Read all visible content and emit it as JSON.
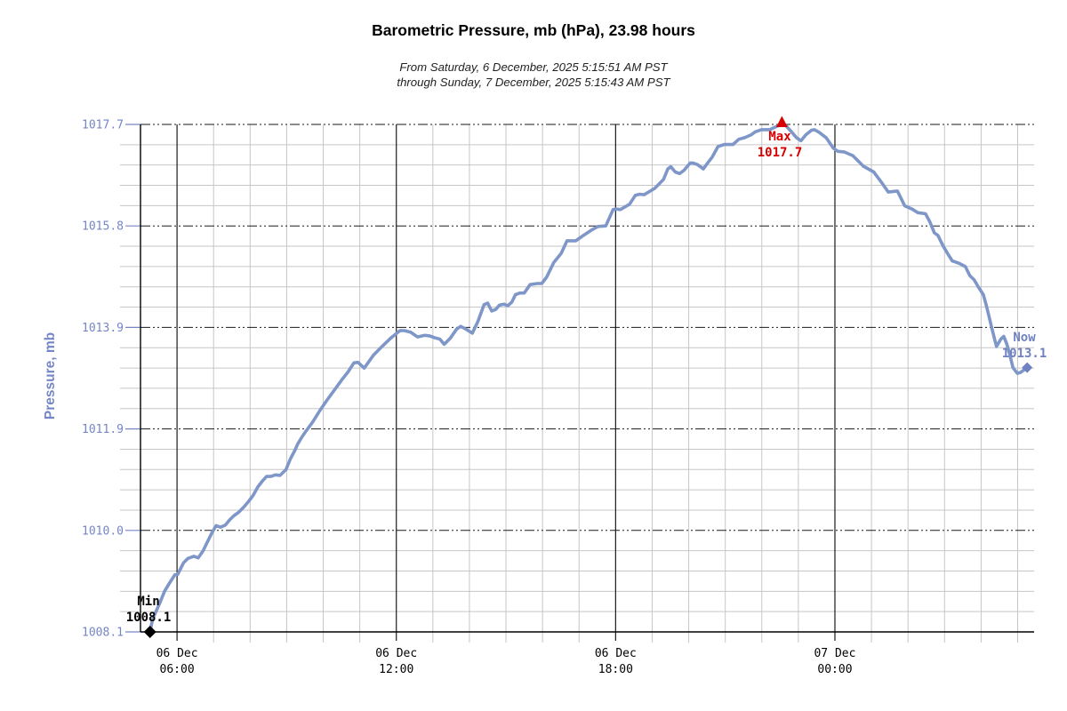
{
  "title": "Barometric Pressure, mb (hPa), 23.98 hours",
  "subtitle_line1": "From Saturday, 6 December, 2025 5:15:51 AM PST",
  "subtitle_line2": "through Sunday, 7 December, 2025 5:15:43 AM PST",
  "chart_data": {
    "type": "line",
    "title": "Barometric Pressure, mb (hPa), 23.98 hours",
    "ylabel": "Pressure, mb",
    "x_unit": "hours",
    "x_range": [
      5.0,
      29.45
    ],
    "y_range": [
      1008.1,
      1017.7
    ],
    "y_ticks": [
      {
        "value": 1017.7,
        "label": "1017.7"
      },
      {
        "value": 1015.78,
        "label": "1015.8"
      },
      {
        "value": 1013.86,
        "label": "1013.9"
      },
      {
        "value": 1011.94,
        "label": "1011.9"
      },
      {
        "value": 1010.02,
        "label": "1010.0"
      },
      {
        "value": 1008.1,
        "label": "1008.1"
      }
    ],
    "y_minor_divisions": 25,
    "x_major_ticks": [
      {
        "hour": 6,
        "label_line1": "06 Dec",
        "label_line2": "06:00"
      },
      {
        "hour": 12,
        "label_line1": "06 Dec",
        "label_line2": "12:00"
      },
      {
        "hour": 18,
        "label_line1": "06 Dec",
        "label_line2": "18:00"
      },
      {
        "hour": 24,
        "label_line1": "07 Dec",
        "label_line2": "00:00"
      }
    ],
    "x_minor_step_hours": 1,
    "grid": true,
    "legend": false,
    "markers": {
      "min": {
        "label": "Min",
        "value_label": "1008.1",
        "value": 1008.1,
        "hour": 5.26
      },
      "max": {
        "label": "Max",
        "value_label": "1017.7",
        "value": 1017.7,
        "hour": 22.55
      },
      "now": {
        "label": "Now",
        "value_label": "1013.1",
        "value": 1013.1,
        "hour": 29.26
      }
    },
    "colors": {
      "line": "#7E96C8",
      "axis_labels": "#7586C6",
      "now_marker": "#7081C2",
      "min_marker": "#000000",
      "max_marker": "#D60000",
      "minor_grid": "#C6C6C6",
      "major_grid": "#1A1A1A",
      "axis": "#000000",
      "tick_text": "#000000"
    },
    "series": [
      {
        "name": "pressure",
        "points": [
          [
            5.26,
            1008.1
          ],
          [
            5.33,
            1008.34
          ],
          [
            5.53,
            1008.65
          ],
          [
            5.66,
            1008.87
          ],
          [
            5.78,
            1009.01
          ],
          [
            5.94,
            1009.18
          ],
          [
            6.02,
            1009.19
          ],
          [
            6.18,
            1009.41
          ],
          [
            6.3,
            1009.49
          ],
          [
            6.46,
            1009.53
          ],
          [
            6.58,
            1009.5
          ],
          [
            6.71,
            1009.63
          ],
          [
            6.83,
            1009.8
          ],
          [
            6.95,
            1009.97
          ],
          [
            7.07,
            1010.11
          ],
          [
            7.19,
            1010.08
          ],
          [
            7.32,
            1010.12
          ],
          [
            7.44,
            1010.22
          ],
          [
            7.56,
            1010.3
          ],
          [
            7.68,
            1010.36
          ],
          [
            7.84,
            1010.47
          ],
          [
            7.97,
            1010.58
          ],
          [
            8.09,
            1010.69
          ],
          [
            8.21,
            1010.84
          ],
          [
            8.33,
            1010.95
          ],
          [
            8.45,
            1011.04
          ],
          [
            8.57,
            1011.04
          ],
          [
            8.69,
            1011.07
          ],
          [
            8.82,
            1011.06
          ],
          [
            8.98,
            1011.17
          ],
          [
            9.1,
            1011.37
          ],
          [
            9.22,
            1011.53
          ],
          [
            9.3,
            1011.65
          ],
          [
            9.42,
            1011.79
          ],
          [
            9.54,
            1011.91
          ],
          [
            9.71,
            1012.07
          ],
          [
            9.91,
            1012.29
          ],
          [
            10.11,
            1012.49
          ],
          [
            10.31,
            1012.68
          ],
          [
            10.52,
            1012.88
          ],
          [
            10.68,
            1013.02
          ],
          [
            10.84,
            1013.19
          ],
          [
            10.95,
            1013.2
          ],
          [
            11.12,
            1013.09
          ],
          [
            11.37,
            1013.33
          ],
          [
            11.61,
            1013.5
          ],
          [
            11.85,
            1013.66
          ],
          [
            12.1,
            1013.8
          ],
          [
            12.22,
            1013.8
          ],
          [
            12.39,
            1013.77
          ],
          [
            12.58,
            1013.68
          ],
          [
            12.78,
            1013.71
          ],
          [
            12.91,
            1013.7
          ],
          [
            13.07,
            1013.66
          ],
          [
            13.19,
            1013.64
          ],
          [
            13.31,
            1013.54
          ],
          [
            13.48,
            1013.66
          ],
          [
            13.65,
            1013.83
          ],
          [
            13.76,
            1013.88
          ],
          [
            13.9,
            1013.83
          ],
          [
            14.08,
            1013.75
          ],
          [
            14.23,
            1013.97
          ],
          [
            14.4,
            1014.29
          ],
          [
            14.5,
            1014.32
          ],
          [
            14.61,
            1014.17
          ],
          [
            14.72,
            1014.2
          ],
          [
            14.82,
            1014.28
          ],
          [
            14.94,
            1014.3
          ],
          [
            15.05,
            1014.27
          ],
          [
            15.16,
            1014.34
          ],
          [
            15.26,
            1014.48
          ],
          [
            15.38,
            1014.51
          ],
          [
            15.5,
            1014.51
          ],
          [
            15.66,
            1014.67
          ],
          [
            15.86,
            1014.69
          ],
          [
            15.98,
            1014.69
          ],
          [
            16.11,
            1014.81
          ],
          [
            16.31,
            1015.09
          ],
          [
            16.51,
            1015.26
          ],
          [
            16.67,
            1015.5
          ],
          [
            16.91,
            1015.5
          ],
          [
            17.12,
            1015.6
          ],
          [
            17.36,
            1015.71
          ],
          [
            17.52,
            1015.77
          ],
          [
            17.73,
            1015.78
          ],
          [
            17.93,
            1016.09
          ],
          [
            18.01,
            1016.1
          ],
          [
            18.13,
            1016.09
          ],
          [
            18.38,
            1016.19
          ],
          [
            18.54,
            1016.36
          ],
          [
            18.66,
            1016.38
          ],
          [
            18.78,
            1016.37
          ],
          [
            19.07,
            1016.49
          ],
          [
            19.31,
            1016.66
          ],
          [
            19.43,
            1016.86
          ],
          [
            19.51,
            1016.9
          ],
          [
            19.63,
            1016.8
          ],
          [
            19.75,
            1016.77
          ],
          [
            19.87,
            1016.83
          ],
          [
            20.04,
            1016.97
          ],
          [
            20.12,
            1016.97
          ],
          [
            20.24,
            1016.94
          ],
          [
            20.4,
            1016.86
          ],
          [
            20.53,
            1016.98
          ],
          [
            20.64,
            1017.08
          ],
          [
            20.8,
            1017.28
          ],
          [
            20.97,
            1017.32
          ],
          [
            21.21,
            1017.32
          ],
          [
            21.37,
            1017.42
          ],
          [
            21.53,
            1017.45
          ],
          [
            21.7,
            1017.5
          ],
          [
            21.82,
            1017.56
          ],
          [
            21.99,
            1017.6
          ],
          [
            22.22,
            1017.6
          ],
          [
            22.43,
            1017.67
          ],
          [
            22.55,
            1017.7
          ],
          [
            22.67,
            1017.67
          ],
          [
            22.81,
            1017.56
          ],
          [
            22.95,
            1017.45
          ],
          [
            23.07,
            1017.39
          ],
          [
            23.2,
            1017.5
          ],
          [
            23.36,
            1017.59
          ],
          [
            23.44,
            1017.6
          ],
          [
            23.57,
            1017.55
          ],
          [
            23.76,
            1017.45
          ],
          [
            23.96,
            1017.25
          ],
          [
            24.08,
            1017.19
          ],
          [
            24.25,
            1017.18
          ],
          [
            24.49,
            1017.11
          ],
          [
            24.78,
            1016.91
          ],
          [
            25.06,
            1016.8
          ],
          [
            25.3,
            1016.58
          ],
          [
            25.46,
            1016.42
          ],
          [
            25.71,
            1016.44
          ],
          [
            25.91,
            1016.16
          ],
          [
            26.11,
            1016.1
          ],
          [
            26.27,
            1016.03
          ],
          [
            26.48,
            1016.01
          ],
          [
            26.6,
            1015.85
          ],
          [
            26.72,
            1015.65
          ],
          [
            26.82,
            1015.6
          ],
          [
            26.96,
            1015.4
          ],
          [
            27.08,
            1015.26
          ],
          [
            27.21,
            1015.12
          ],
          [
            27.41,
            1015.07
          ],
          [
            27.57,
            1015.01
          ],
          [
            27.69,
            1014.84
          ],
          [
            27.81,
            1014.76
          ],
          [
            27.92,
            1014.63
          ],
          [
            28.06,
            1014.48
          ],
          [
            28.14,
            1014.28
          ],
          [
            28.22,
            1014.06
          ],
          [
            28.3,
            1013.83
          ],
          [
            28.38,
            1013.61
          ],
          [
            28.42,
            1013.5
          ],
          [
            28.54,
            1013.64
          ],
          [
            28.62,
            1013.69
          ],
          [
            28.7,
            1013.55
          ],
          [
            28.79,
            1013.33
          ],
          [
            28.87,
            1013.1
          ],
          [
            28.99,
            1012.99
          ],
          [
            29.08,
            1013.01
          ],
          [
            29.26,
            1013.1
          ]
        ]
      }
    ]
  }
}
